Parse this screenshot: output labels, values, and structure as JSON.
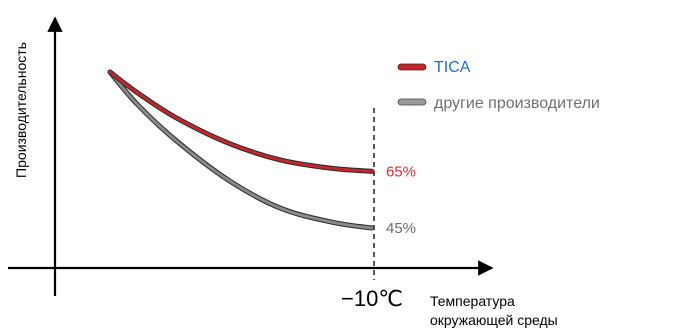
{
  "chart_data": {
    "type": "line",
    "title": "",
    "ylabel": "Производительность",
    "xlabel": "Температура окружающей среды",
    "xlabel_lines": [
      "Температура",
      "окружающей среды"
    ],
    "x_tick_label": "−10℃",
    "x_tick_value": -10,
    "legend_position": "top-right",
    "grid": false,
    "series": [
      {
        "name": "TICA",
        "color": "#c0282e",
        "label_color": "#e02a35",
        "x": [
          0,
          0.1,
          0.25,
          0.45,
          0.65,
          0.85,
          1.0
        ],
        "y": [
          100,
          93,
          84,
          75,
          69,
          66,
          65
        ],
        "end_label": "65%"
      },
      {
        "name": "другие производители",
        "color": "#8a8a8a",
        "label_color": "#6e6e6e",
        "x": [
          0,
          0.1,
          0.25,
          0.45,
          0.65,
          0.85,
          1.0
        ],
        "y": [
          100,
          89,
          76,
          62,
          52,
          47,
          45
        ],
        "end_label": "45%"
      }
    ],
    "legend_text_colors": [
      "#1f6fc8",
      "#707070"
    ]
  }
}
